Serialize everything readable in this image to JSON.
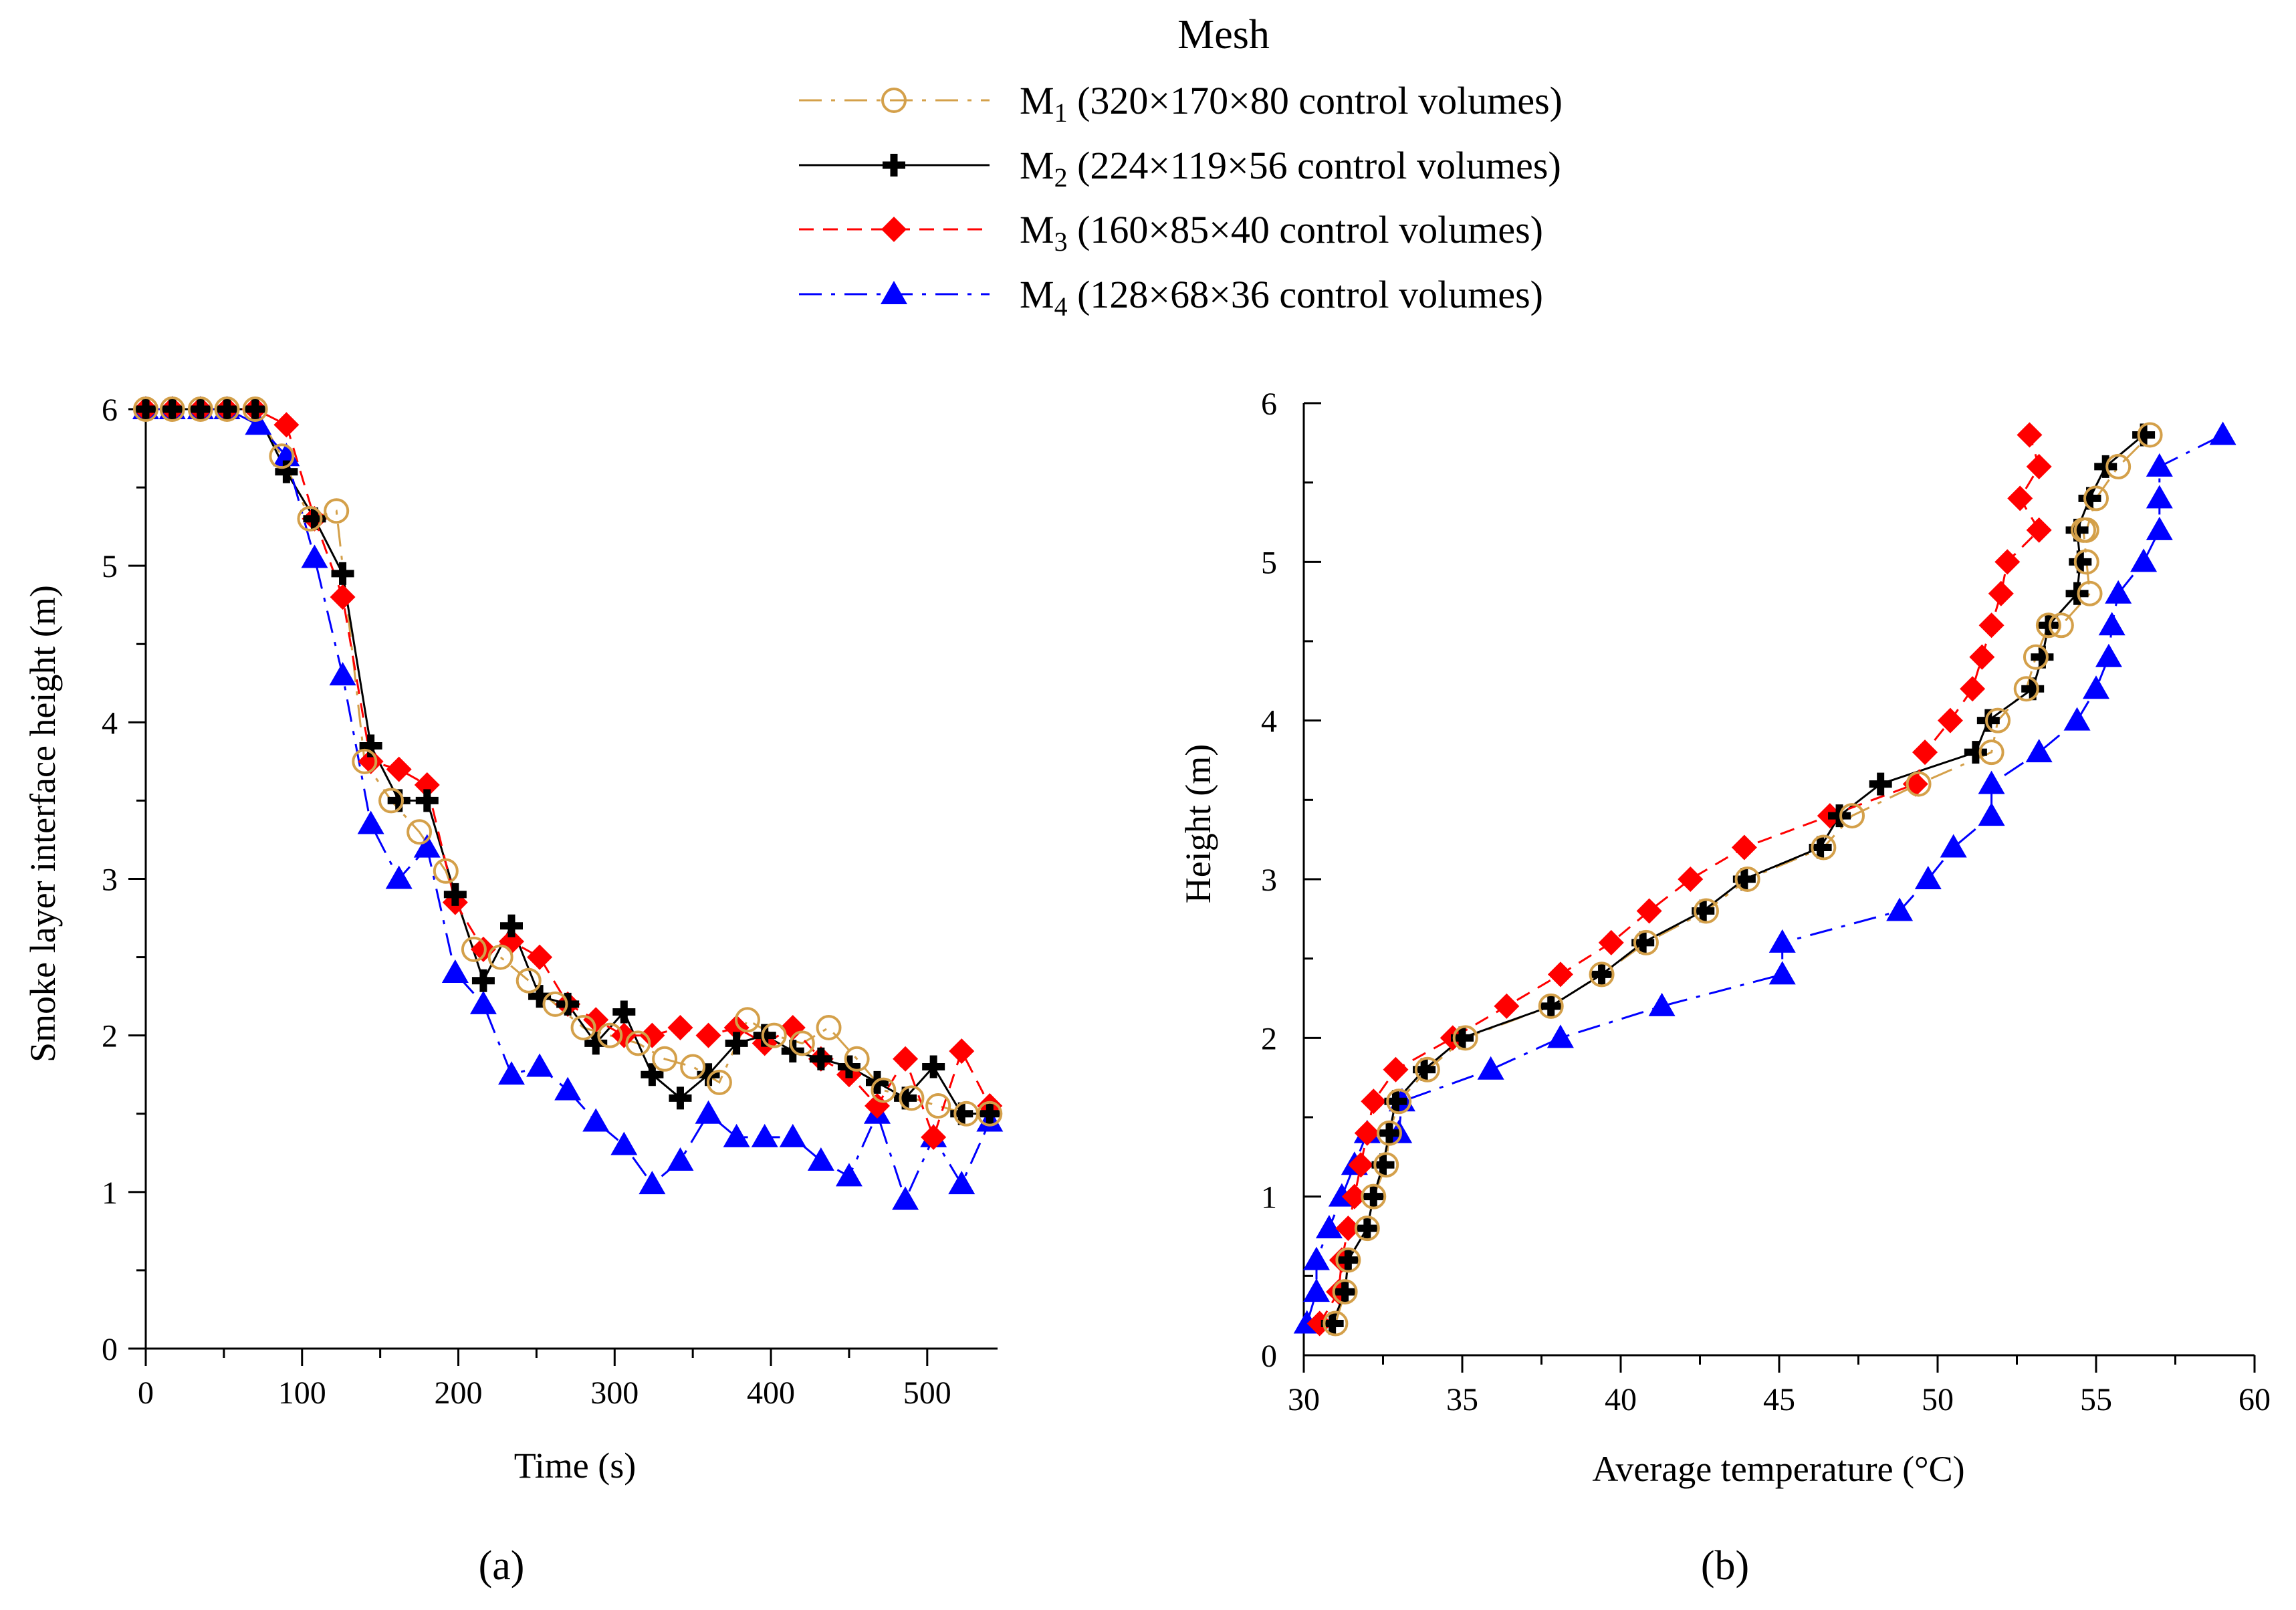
{
  "legend": {
    "title": "Mesh",
    "entries": [
      {
        "prefix": "M",
        "sub": "1",
        "text": " (320×170×80 control volumes)",
        "color": "#d4a04a",
        "marker": "circle",
        "dash": "dashdot"
      },
      {
        "prefix": "M",
        "sub": "2",
        "text": " (224×119×56 control volumes)",
        "color": "#000000",
        "marker": "plus",
        "dash": "solid"
      },
      {
        "prefix": "M",
        "sub": "3",
        "text": " (160×85×40 control volumes)",
        "color": "#ff0000",
        "marker": "diamond",
        "dash": "dashed"
      },
      {
        "prefix": "M",
        "sub": "4",
        "text": " (128×68×36 control volumes)",
        "color": "#0000ff",
        "marker": "triangle",
        "dash": "dashdot"
      }
    ]
  },
  "panel_labels": [
    "(a)",
    "(b)"
  ],
  "chart_data": [
    {
      "type": "line",
      "panel": "(a)",
      "xlabel": "Time (s)",
      "ylabel": "Smoke layer interface height (m)",
      "xlim": [
        0,
        545
      ],
      "ylim": [
        0,
        6
      ],
      "xticks": [
        0,
        100,
        200,
        300,
        400,
        500
      ],
      "yticks": [
        0,
        1,
        2,
        3,
        4,
        5,
        6
      ],
      "series": [
        {
          "name": "M1",
          "x": [
            0,
            17,
            35,
            52,
            70,
            87,
            105,
            122,
            140,
            157,
            175,
            192,
            210,
            227,
            245,
            262,
            280,
            297,
            315,
            332,
            350,
            367,
            385,
            402,
            420,
            437,
            455,
            472,
            490,
            507,
            525,
            540
          ],
          "y": [
            6,
            6,
            6,
            6,
            6,
            5.7,
            5.3,
            5.35,
            3.75,
            3.5,
            3.3,
            3.05,
            2.55,
            2.5,
            2.35,
            2.2,
            2.05,
            2.0,
            1.95,
            1.85,
            1.8,
            1.7,
            2.1,
            2.0,
            1.95,
            2.05,
            1.85,
            1.65,
            1.6,
            1.55,
            1.5,
            1.5
          ]
        },
        {
          "name": "M2",
          "x": [
            0,
            17,
            35,
            52,
            70,
            90,
            108,
            126,
            144,
            162,
            180,
            198,
            216,
            234,
            252,
            270,
            288,
            306,
            324,
            342,
            360,
            378,
            396,
            414,
            432,
            450,
            468,
            486,
            504,
            522,
            540
          ],
          "y": [
            6,
            6,
            6,
            6,
            6,
            5.6,
            5.3,
            4.95,
            3.85,
            3.5,
            3.5,
            2.9,
            2.35,
            2.7,
            2.25,
            2.2,
            1.95,
            2.15,
            1.75,
            1.6,
            1.75,
            1.95,
            2.0,
            1.9,
            1.85,
            1.8,
            1.7,
            1.6,
            1.8,
            1.5,
            1.5
          ]
        },
        {
          "name": "M3",
          "x": [
            0,
            17,
            35,
            52,
            70,
            90,
            108,
            126,
            144,
            162,
            180,
            198,
            216,
            234,
            252,
            270,
            288,
            306,
            324,
            342,
            360,
            378,
            396,
            414,
            432,
            450,
            468,
            486,
            504,
            522,
            540
          ],
          "y": [
            6,
            6,
            6,
            6,
            6,
            5.9,
            5.3,
            4.8,
            3.75,
            3.7,
            3.6,
            2.85,
            2.55,
            2.6,
            2.5,
            2.2,
            2.1,
            2.0,
            2.0,
            2.05,
            2.0,
            2.05,
            1.95,
            2.05,
            1.85,
            1.75,
            1.55,
            1.85,
            1.35,
            1.9,
            1.55
          ]
        },
        {
          "name": "M4",
          "x": [
            0,
            17,
            35,
            52,
            72,
            90,
            108,
            126,
            144,
            162,
            180,
            198,
            216,
            234,
            252,
            270,
            288,
            306,
            324,
            342,
            360,
            378,
            396,
            414,
            432,
            450,
            468,
            486,
            504,
            522,
            540
          ],
          "y": [
            6,
            6,
            6,
            6,
            5.9,
            5.7,
            5.05,
            4.3,
            3.35,
            3.0,
            3.2,
            2.4,
            2.2,
            1.75,
            1.8,
            1.65,
            1.45,
            1.3,
            1.05,
            1.2,
            1.5,
            1.35,
            1.35,
            1.35,
            1.2,
            1.1,
            1.5,
            0.95,
            1.35,
            1.05,
            1.45
          ]
        }
      ]
    },
    {
      "type": "line",
      "panel": "(b)",
      "xlabel": "Average temperature (°C)",
      "ylabel": "Height (m)",
      "xlim": [
        30,
        60
      ],
      "ylim": [
        0,
        6
      ],
      "xticks": [
        30,
        35,
        40,
        45,
        50,
        55,
        60
      ],
      "yticks": [
        0,
        1,
        2,
        3,
        4,
        5,
        6
      ],
      "series": [
        {
          "name": "M1",
          "x": [
            31,
            31.3,
            31.4,
            32,
            32.2,
            32.6,
            32.7,
            33,
            33.9,
            35.1,
            37.8,
            39.4,
            40.8,
            42.7,
            44,
            46.4,
            47.3,
            49.4,
            51.7,
            51.9,
            52.8,
            53.1,
            53.5,
            53.9,
            54.8,
            54.7,
            54.6,
            54.7,
            55,
            55.7,
            56.7
          ],
          "y": [
            0.2,
            0.4,
            0.6,
            0.8,
            1.0,
            1.2,
            1.4,
            1.6,
            1.8,
            2.0,
            2.2,
            2.4,
            2.6,
            2.8,
            3.0,
            3.2,
            3.4,
            3.6,
            3.8,
            4.0,
            4.2,
            4.4,
            4.6,
            4.6,
            4.8,
            5.0,
            5.2,
            5.2,
            5.4,
            5.6,
            5.8
          ]
        },
        {
          "name": "M2",
          "x": [
            30.9,
            31.3,
            31.4,
            32,
            32.2,
            32.5,
            32.7,
            32.9,
            33.8,
            35,
            37.8,
            39.4,
            40.7,
            42.6,
            43.9,
            46.3,
            46.9,
            48.2,
            51.2,
            51.6,
            53,
            53.3,
            53.5,
            54.4,
            54.5,
            54.4,
            54.8,
            55.3,
            56.5
          ],
          "y": [
            0.2,
            0.4,
            0.6,
            0.8,
            1.0,
            1.2,
            1.4,
            1.6,
            1.8,
            2.0,
            2.2,
            2.4,
            2.6,
            2.8,
            3.0,
            3.2,
            3.4,
            3.6,
            3.8,
            4.0,
            4.2,
            4.4,
            4.6,
            4.8,
            5.0,
            5.2,
            5.4,
            5.6,
            5.8
          ]
        },
        {
          "name": "M3",
          "x": [
            30.5,
            31.1,
            31.2,
            31.4,
            31.6,
            31.8,
            32,
            32.2,
            32.9,
            34.7,
            36.4,
            38.1,
            39.7,
            40.9,
            42.2,
            43.9,
            46.6,
            49.3,
            49.6,
            50.4,
            51.1,
            51.4,
            51.7,
            52,
            52.2,
            53.2,
            52.6,
            53.2,
            52.9
          ],
          "y": [
            0.2,
            0.4,
            0.6,
            0.8,
            1.0,
            1.2,
            1.4,
            1.6,
            1.8,
            2.0,
            2.2,
            2.4,
            2.6,
            2.8,
            3.0,
            3.2,
            3.4,
            3.6,
            3.8,
            4.0,
            4.2,
            4.4,
            4.6,
            4.8,
            5.0,
            5.2,
            5.4,
            5.6,
            5.8
          ]
        },
        {
          "name": "M4",
          "x": [
            30.1,
            30.4,
            30.4,
            30.8,
            31.2,
            31.6,
            32,
            33,
            33.1,
            35.9,
            38.1,
            41.3,
            45.1,
            45.1,
            48.8,
            49.7,
            50.5,
            51.7,
            51.7,
            53.2,
            54.4,
            55,
            55.4,
            55.5,
            55.7,
            56.5,
            57,
            57,
            57,
            59
          ],
          "y": [
            0.2,
            0.4,
            0.6,
            0.8,
            1.0,
            1.2,
            1.4,
            1.4,
            1.6,
            1.8,
            2.0,
            2.2,
            2.4,
            2.6,
            2.8,
            3.0,
            3.2,
            3.4,
            3.6,
            3.8,
            4.0,
            4.2,
            4.4,
            4.6,
            4.8,
            5.0,
            5.2,
            5.4,
            5.6,
            5.8
          ]
        }
      ]
    }
  ]
}
